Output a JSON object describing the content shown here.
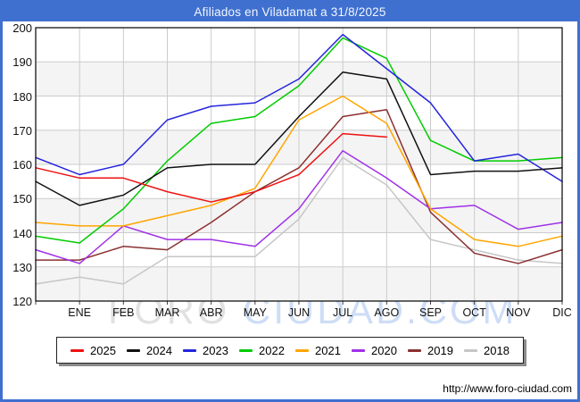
{
  "title_bar": {
    "title": "Afiliados en Viladamat a 31/8/2025"
  },
  "watermark": {
    "part1": "FORO",
    "part2": " CIUDAD.COM"
  },
  "footer": {
    "url": "http://www.foro-ciudad.com"
  },
  "colors": {
    "frame_blue": "#3f70cf",
    "band_stripe": "#f4f4f4",
    "gridline": "#cccccc",
    "axis_border": "#000000",
    "tick": "#444444"
  },
  "chart_data": {
    "type": "line",
    "title": "Afiliados en Viladamat a 31/8/2025",
    "xlabel": "",
    "ylabel": "",
    "x_axis": {
      "months": [
        "ENE",
        "FEB",
        "MAR",
        "ABR",
        "MAY",
        "JUN",
        "JUL",
        "AGO",
        "SEP",
        "OCT",
        "NOV",
        "DIC"
      ],
      "note": "13 evenly spaced points per full series: index 0 sits on the left plot edge (start value), indices 1-12 fall on the ENE-DIC gridlines"
    },
    "y_axis": {
      "min": 120,
      "max": 200,
      "ticks": [
        200,
        190,
        180,
        170,
        160,
        150,
        140,
        130,
        120
      ]
    },
    "grid": true,
    "legend_position": "bottom",
    "series": [
      {
        "name": "2025",
        "color": "#ee1111",
        "values": [
          159,
          156,
          156,
          152,
          149,
          152,
          157,
          169,
          168
        ]
      },
      {
        "name": "2024",
        "color": "#111111",
        "values": [
          155,
          148,
          151,
          159,
          160,
          160,
          174,
          187,
          185,
          157,
          158,
          158,
          159
        ]
      },
      {
        "name": "2023",
        "color": "#2424dd",
        "values": [
          162,
          157,
          160,
          173,
          177,
          178,
          185,
          198,
          188,
          178,
          161,
          163,
          155
        ]
      },
      {
        "name": "2022",
        "color": "#00cc00",
        "values": [
          139,
          137,
          147,
          161,
          172,
          174,
          183,
          197,
          191,
          167,
          161,
          161,
          162
        ]
      },
      {
        "name": "2021",
        "color": "#ffa500",
        "values": [
          143,
          142,
          142,
          145,
          148,
          153,
          173,
          180,
          172,
          147,
          138,
          136,
          139
        ]
      },
      {
        "name": "2020",
        "color": "#a030e8",
        "values": [
          135,
          131,
          142,
          138,
          138,
          136,
          147,
          164,
          156,
          147,
          148,
          141,
          143
        ]
      },
      {
        "name": "2019",
        "color": "#8b3030",
        "values": [
          132,
          132,
          136,
          135,
          143,
          152,
          159,
          174,
          176,
          146,
          134,
          131,
          135
        ]
      },
      {
        "name": "2018",
        "color": "#c6c6c6",
        "values": [
          125,
          127,
          125,
          133,
          133,
          133,
          144,
          162,
          154,
          138,
          135,
          132,
          131
        ]
      }
    ]
  }
}
